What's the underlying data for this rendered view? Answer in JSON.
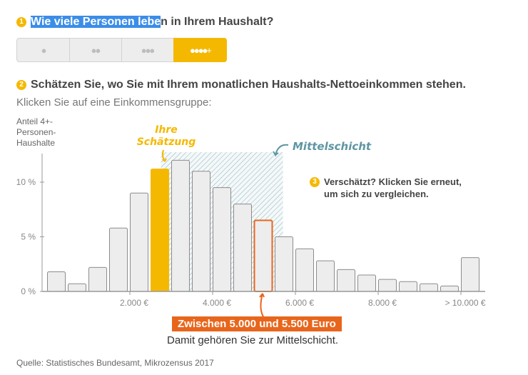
{
  "q1": {
    "number": "1",
    "title_selected": "Wie viele Personen lebe",
    "title_rest": "n in Ihrem Haushalt?",
    "options": [
      {
        "label": "1 Person",
        "icon": "person-icon"
      },
      {
        "label": "2 Personen",
        "icon": "two-persons-icon"
      },
      {
        "label": "3 Personen",
        "icon": "three-persons-icon"
      },
      {
        "label": "4+ Personen",
        "icon": "four-plus-persons-icon",
        "active": true
      }
    ]
  },
  "q2": {
    "number": "2",
    "title": "Schätzen Sie, wo Sie mit Ihrem monatlichen Haushalts-Nettoeinkommen stehen.",
    "subtitle": "Klicken Sie auf eine Einkommensgruppe:"
  },
  "q3": {
    "number": "3",
    "line1": "Verschätzt? Klicken Sie erneut,",
    "line2": "um sich zu vergleichen."
  },
  "chart_data": {
    "type": "bar",
    "ylabel_lines": [
      "Anteil 4+-",
      "Personen-",
      "Haushalte"
    ],
    "ylim": [
      0,
      12.5
    ],
    "yticks": [
      {
        "v": 0,
        "label": "0 %"
      },
      {
        "v": 5,
        "label": "5 %"
      },
      {
        "v": 10,
        "label": "10 %"
      }
    ],
    "xticks": [
      {
        "v": 2000,
        "label": "2.000 €"
      },
      {
        "v": 4000,
        "label": "4.000 €"
      },
      {
        "v": 6000,
        "label": "6.000 €"
      },
      {
        "v": 8000,
        "label": "8.000 €"
      },
      {
        "v": 10000,
        "label": "> 10.000 €"
      }
    ],
    "bin_width": 500,
    "bins_start": [
      0,
      500,
      1000,
      1500,
      2000,
      2500,
      3000,
      3500,
      4000,
      4500,
      5000,
      5500,
      6000,
      6500,
      7000,
      7500,
      8000,
      8500,
      9000,
      9500,
      10000
    ],
    "values": [
      1.8,
      0.7,
      2.2,
      5.8,
      9.0,
      11.2,
      12.0,
      11.0,
      9.5,
      8.0,
      6.5,
      5.0,
      3.9,
      2.8,
      2.0,
      1.5,
      1.1,
      0.9,
      0.7,
      0.5,
      3.1
    ],
    "estimate_bin": 5,
    "actual_bin": 10,
    "middle_class_range": [
      2750,
      5700
    ],
    "annotations": {
      "estimate": [
        "Ihre",
        "Schätzung"
      ],
      "middle_class": "Mittelschicht"
    },
    "colors": {
      "bar": "#ededee",
      "estimate": "#f5b800",
      "actual": "#e8661c",
      "hatch": "#7aa5b0"
    }
  },
  "result": {
    "label": "Zwischen 5.000 und 5.500 Euro",
    "text": "Damit gehören Sie zur Mittelschicht."
  },
  "source": "Quelle: Statistisches Bundesamt, Mikrozensus 2017"
}
